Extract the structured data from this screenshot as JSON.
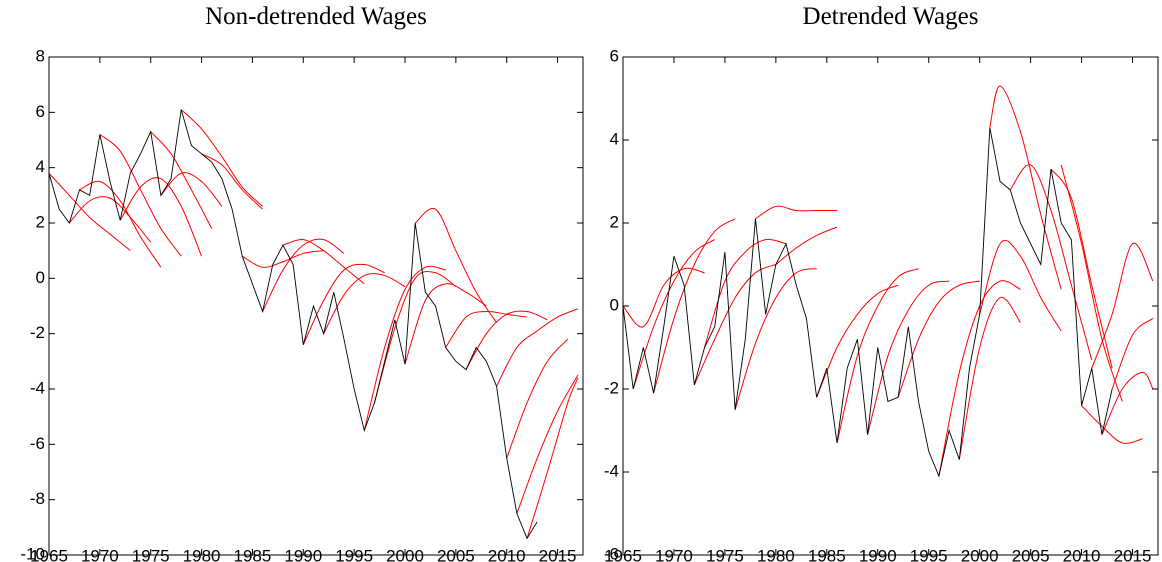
{
  "chart_data": [
    {
      "type": "line",
      "title": "Non-detrended Wages",
      "xlim": [
        1965,
        2017.5
      ],
      "ylim": [
        -10,
        8
      ],
      "xticks": [
        1965,
        1970,
        1975,
        1980,
        1985,
        1990,
        1995,
        2000,
        2005,
        2010,
        2015
      ],
      "yticks": [
        -10,
        -8,
        -6,
        -4,
        -2,
        0,
        2,
        4,
        6,
        8
      ],
      "series": [
        {
          "color": "#000000",
          "x": [
            1965,
            1966,
            1967,
            1968,
            1969,
            1970,
            1971,
            1972,
            1973,
            1974,
            1975,
            1976,
            1977,
            1978,
            1979,
            1980,
            1981,
            1982,
            1983,
            1984,
            1985,
            1986,
            1987,
            1988,
            1989,
            1990,
            1991,
            1992,
            1993,
            1994,
            1995,
            1996,
            1997,
            1998,
            1999,
            2000,
            2001,
            2002,
            2003,
            2004,
            2005,
            2006,
            2007,
            2008,
            2009,
            2010,
            2011,
            2012,
            2013
          ],
          "values": [
            3.8,
            2.5,
            2.0,
            3.2,
            3.0,
            5.2,
            3.5,
            2.1,
            3.8,
            4.5,
            5.3,
            3.0,
            3.6,
            6.1,
            4.8,
            4.5,
            4.2,
            3.6,
            2.5,
            0.8,
            -0.2,
            -1.2,
            0.5,
            1.2,
            0.5,
            -2.4,
            -1.0,
            -2.0,
            -0.5,
            -2.2,
            -4.0,
            -5.5,
            -4.5,
            -3.0,
            -1.5,
            -3.1,
            2.0,
            -0.5,
            -1.0,
            -2.5,
            -3.0,
            -3.3,
            -2.5,
            -3.0,
            -3.9,
            -6.5,
            -8.5,
            -9.4,
            -8.8
          ]
        },
        {
          "color": "#ff0000",
          "x": [
            1965,
            1967,
            1969,
            1971,
            1973
          ],
          "values": [
            3.8,
            3.0,
            2.2,
            1.6,
            1.0
          ]
        },
        {
          "color": "#ff0000",
          "x": [
            1967,
            1969,
            1971,
            1973,
            1975
          ],
          "values": [
            2.0,
            2.8,
            2.9,
            2.2,
            1.3
          ]
        },
        {
          "color": "#ff0000",
          "x": [
            1968,
            1970,
            1972,
            1974,
            1976
          ],
          "values": [
            3.2,
            3.5,
            2.8,
            1.5,
            0.4
          ]
        },
        {
          "color": "#ff0000",
          "x": [
            1970,
            1972,
            1974,
            1976,
            1978
          ],
          "values": [
            5.2,
            4.6,
            3.2,
            1.8,
            0.8
          ]
        },
        {
          "color": "#ff0000",
          "x": [
            1972,
            1974,
            1976,
            1978,
            1980
          ],
          "values": [
            2.1,
            3.3,
            3.6,
            2.6,
            0.8
          ]
        },
        {
          "color": "#ff0000",
          "x": [
            1975,
            1977,
            1979,
            1981
          ],
          "values": [
            5.3,
            4.5,
            3.2,
            1.8
          ]
        },
        {
          "color": "#ff0000",
          "x": [
            1976,
            1978,
            1980,
            1982
          ],
          "values": [
            3.0,
            3.8,
            3.5,
            2.6
          ]
        },
        {
          "color": "#ff0000",
          "x": [
            1978,
            1980,
            1982,
            1984,
            1986
          ],
          "values": [
            6.1,
            5.4,
            4.4,
            3.3,
            2.6
          ]
        },
        {
          "color": "#ff0000",
          "x": [
            1980,
            1982,
            1984,
            1986
          ],
          "values": [
            4.5,
            4.1,
            3.2,
            2.5
          ]
        },
        {
          "color": "#ff0000",
          "x": [
            1984,
            1986,
            1988,
            1990,
            1992
          ],
          "values": [
            0.8,
            0.4,
            0.6,
            0.9,
            1.0
          ]
        },
        {
          "color": "#ff0000",
          "x": [
            1986,
            1988,
            1990,
            1992,
            1994
          ],
          "values": [
            -1.2,
            0.3,
            1.2,
            1.4,
            0.9
          ]
        },
        {
          "color": "#ff0000",
          "x": [
            1988,
            1990,
            1992,
            1994,
            1996
          ],
          "values": [
            1.2,
            1.4,
            1.0,
            0.4,
            -0.2
          ]
        },
        {
          "color": "#ff0000",
          "x": [
            1990,
            1992,
            1994,
            1996,
            1998
          ],
          "values": [
            -2.4,
            -0.8,
            0.3,
            0.5,
            0.2
          ]
        },
        {
          "color": "#ff0000",
          "x": [
            1992,
            1994,
            1996,
            1998,
            2000
          ],
          "values": [
            -2.0,
            -0.6,
            0.1,
            0.1,
            -0.3
          ]
        },
        {
          "color": "#ff0000",
          "x": [
            1996,
            1998,
            2000,
            2002,
            2004
          ],
          "values": [
            -5.5,
            -2.5,
            -0.4,
            0.4,
            0.3
          ]
        },
        {
          "color": "#ff0000",
          "x": [
            1997,
            1999,
            2001,
            2003,
            2005
          ],
          "values": [
            -4.5,
            -1.8,
            0.0,
            0.2,
            -0.3
          ]
        },
        {
          "color": "#ff0000",
          "x": [
            2000,
            2002,
            2004,
            2006,
            2008
          ],
          "values": [
            -3.1,
            -0.8,
            -0.2,
            -0.5,
            -1.0
          ]
        },
        {
          "color": "#ff0000",
          "x": [
            2001,
            2003,
            2005,
            2007,
            2009
          ],
          "values": [
            2.0,
            2.5,
            1.0,
            -0.5,
            -1.6
          ]
        },
        {
          "color": "#ff0000",
          "x": [
            2004,
            2006,
            2008,
            2010,
            2012
          ],
          "values": [
            -2.5,
            -1.4,
            -1.2,
            -1.3,
            -1.4
          ]
        },
        {
          "color": "#ff0000",
          "x": [
            2006,
            2008,
            2010,
            2012,
            2014
          ],
          "values": [
            -3.3,
            -2.0,
            -1.3,
            -1.2,
            -1.5
          ]
        },
        {
          "color": "#ff0000",
          "x": [
            2009,
            2011,
            2013,
            2015,
            2017
          ],
          "values": [
            -3.9,
            -2.5,
            -1.9,
            -1.4,
            -1.1
          ]
        },
        {
          "color": "#ff0000",
          "x": [
            2011,
            2013,
            2015,
            2017
          ],
          "values": [
            -8.5,
            -6.5,
            -4.8,
            -3.5
          ]
        },
        {
          "color": "#ff0000",
          "x": [
            2012,
            2014,
            2016,
            2017
          ],
          "values": [
            -9.4,
            -7.0,
            -4.5,
            -3.6
          ]
        },
        {
          "color": "#ff0000",
          "x": [
            2010,
            2012,
            2014,
            2016
          ],
          "values": [
            -6.5,
            -4.5,
            -3.0,
            -2.2
          ]
        }
      ]
    },
    {
      "type": "line",
      "title": "Detrended Wages",
      "xlim": [
        1965,
        2017.5
      ],
      "ylim": [
        -6,
        6
      ],
      "xticks": [
        1965,
        1970,
        1975,
        1980,
        1985,
        1990,
        1995,
        2000,
        2005,
        2010,
        2015
      ],
      "yticks": [
        -6,
        -4,
        -2,
        0,
        2,
        4,
        6
      ],
      "series": [
        {
          "color": "#000000",
          "x": [
            1965,
            1966,
            1967,
            1968,
            1969,
            1970,
            1971,
            1972,
            1973,
            1974,
            1975,
            1976,
            1977,
            1978,
            1979,
            1980,
            1981,
            1982,
            1983,
            1984,
            1985,
            1986,
            1987,
            1988,
            1989,
            1990,
            1991,
            1992,
            1993,
            1994,
            1995,
            1996,
            1997,
            1998,
            1999,
            2000,
            2001,
            2002,
            2003,
            2004,
            2005,
            2006,
            2007,
            2008,
            2009,
            2010,
            2011,
            2012,
            2013
          ],
          "values": [
            0,
            -2.0,
            -1.0,
            -2.1,
            -0.5,
            1.2,
            0.5,
            -1.9,
            -1.0,
            -0.5,
            1.3,
            -2.5,
            -0.8,
            2.1,
            -0.2,
            1.0,
            1.5,
            0.5,
            -0.3,
            -2.2,
            -1.5,
            -3.3,
            -1.5,
            -0.8,
            -3.1,
            -1.0,
            -2.3,
            -2.2,
            -0.5,
            -2.3,
            -3.5,
            -4.1,
            -3.0,
            -3.7,
            -1.5,
            -0.2,
            4.3,
            3.0,
            2.8,
            2.0,
            1.5,
            1.0,
            3.3,
            2.0,
            1.6,
            -2.4,
            -1.5,
            -3.1,
            -2.0
          ]
        },
        {
          "color": "#ff0000",
          "x": [
            1965,
            1967,
            1969,
            1971,
            1973
          ],
          "values": [
            0,
            -0.5,
            0.5,
            0.9,
            0.8
          ]
        },
        {
          "color": "#ff0000",
          "x": [
            1966,
            1968,
            1970,
            1972,
            1974
          ],
          "values": [
            -2.0,
            -0.5,
            0.6,
            1.3,
            1.6
          ]
        },
        {
          "color": "#ff0000",
          "x": [
            1968,
            1970,
            1972,
            1974,
            1976
          ],
          "values": [
            -2.1,
            -0.3,
            1.0,
            1.8,
            2.1
          ]
        },
        {
          "color": "#ff0000",
          "x": [
            1972,
            1974,
            1976,
            1978,
            1980
          ],
          "values": [
            -1.9,
            -0.8,
            0.2,
            0.8,
            1.0
          ]
        },
        {
          "color": "#ff0000",
          "x": [
            1973,
            1975,
            1977,
            1979,
            1981
          ],
          "values": [
            -1.0,
            0.6,
            1.3,
            1.6,
            1.5
          ]
        },
        {
          "color": "#ff0000",
          "x": [
            1976,
            1978,
            1980,
            1982,
            1984
          ],
          "values": [
            -2.5,
            -0.9,
            0.2,
            0.8,
            0.9
          ]
        },
        {
          "color": "#ff0000",
          "x": [
            1978,
            1980,
            1982,
            1984,
            1986
          ],
          "values": [
            2.1,
            2.4,
            2.3,
            2.3,
            2.3
          ]
        },
        {
          "color": "#ff0000",
          "x": [
            1980,
            1982,
            1984,
            1986
          ],
          "values": [
            1.0,
            1.4,
            1.7,
            1.9
          ]
        },
        {
          "color": "#ff0000",
          "x": [
            1984,
            1986,
            1988,
            1990,
            1992
          ],
          "values": [
            -2.2,
            -1.0,
            -0.2,
            0.3,
            0.5
          ]
        },
        {
          "color": "#ff0000",
          "x": [
            1986,
            1988,
            1990,
            1992,
            1994
          ],
          "values": [
            -3.3,
            -1.2,
            0.0,
            0.7,
            0.9
          ]
        },
        {
          "color": "#ff0000",
          "x": [
            1989,
            1991,
            1993,
            1995,
            1997
          ],
          "values": [
            -3.1,
            -1.2,
            -0.1,
            0.5,
            0.6
          ]
        },
        {
          "color": "#ff0000",
          "x": [
            1992,
            1994,
            1996,
            1998,
            2000
          ],
          "values": [
            -2.2,
            -0.8,
            0.1,
            0.5,
            0.6
          ]
        },
        {
          "color": "#ff0000",
          "x": [
            1996,
            1998,
            2000,
            2002,
            2004
          ],
          "values": [
            -4.1,
            -1.6,
            0.0,
            0.6,
            0.4
          ]
        },
        {
          "color": "#ff0000",
          "x": [
            1998,
            2000,
            2002,
            2004
          ],
          "values": [
            -3.7,
            -1.0,
            0.2,
            -0.4
          ]
        },
        {
          "color": "#ff0000",
          "x": [
            2000,
            2002,
            2004,
            2006,
            2008
          ],
          "values": [
            -0.2,
            1.5,
            1.2,
            0.2,
            -0.6
          ]
        },
        {
          "color": "#ff0000",
          "x": [
            2001,
            2002,
            2004,
            2006,
            2008
          ],
          "values": [
            4.3,
            5.3,
            4.2,
            2.2,
            0.4
          ]
        },
        {
          "color": "#ff0000",
          "x": [
            2003,
            2005,
            2007,
            2009,
            2011
          ],
          "values": [
            2.8,
            3.4,
            2.3,
            0.5,
            -1.3
          ]
        },
        {
          "color": "#ff0000",
          "x": [
            2007,
            2009,
            2011,
            2013
          ],
          "values": [
            3.3,
            2.6,
            0.5,
            -1.5
          ]
        },
        {
          "color": "#ff0000",
          "x": [
            2008,
            2010,
            2012,
            2014
          ],
          "values": [
            3.4,
            1.5,
            -0.8,
            -2.3
          ]
        },
        {
          "color": "#ff0000",
          "x": [
            2010,
            2012,
            2014,
            2016
          ],
          "values": [
            -2.4,
            -2.9,
            -3.3,
            -3.2
          ]
        },
        {
          "color": "#ff0000",
          "x": [
            2011,
            2013,
            2015,
            2017
          ],
          "values": [
            -1.5,
            -0.2,
            1.5,
            0.6
          ]
        },
        {
          "color": "#ff0000",
          "x": [
            2012,
            2014,
            2016,
            2017
          ],
          "values": [
            -3.1,
            -2.0,
            -1.6,
            -2.0
          ]
        },
        {
          "color": "#ff0000",
          "x": [
            2013,
            2015,
            2017
          ],
          "values": [
            -2.0,
            -0.7,
            -0.3
          ]
        }
      ]
    }
  ]
}
